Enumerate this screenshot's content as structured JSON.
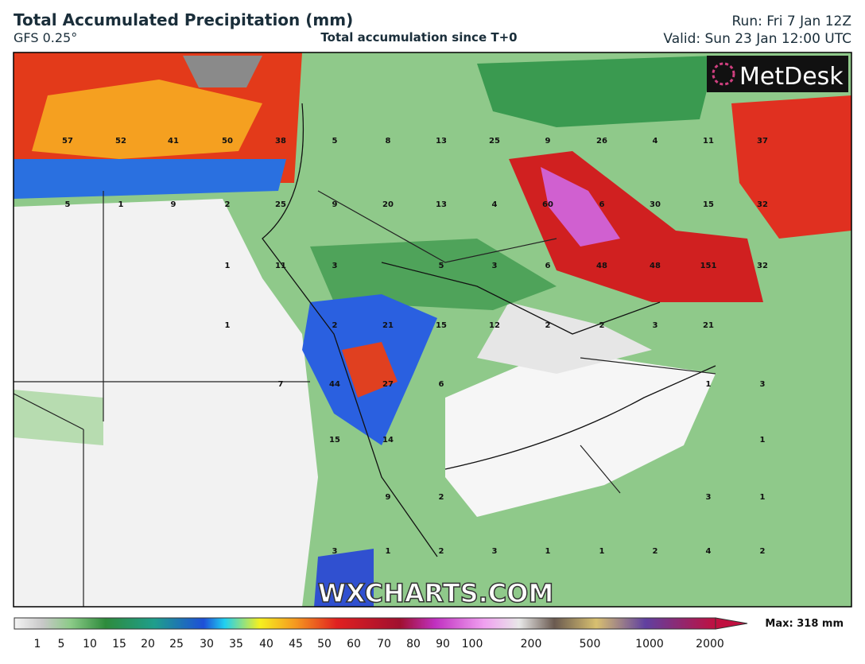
{
  "header": {
    "title": "Total Accumulated Precipitation (mm)",
    "model": "GFS 0.25°",
    "subtitle": "Total accumulation since T+0",
    "run": "Run: Fri 7 Jan 12Z",
    "valid": "Valid: Sun 23 Jan 12:00 UTC"
  },
  "map": {
    "logo": "MetDesk",
    "watermark": "WXCHARTS.COM",
    "labels": [
      [
        57,
        52,
        41,
        50,
        38,
        5,
        8,
        13,
        25,
        9,
        26,
        4,
        11,
        37
      ],
      [
        5,
        1,
        9,
        2,
        25,
        9,
        20,
        13,
        4,
        60,
        6,
        30,
        15,
        32
      ],
      [
        1,
        11,
        3,
        5,
        3,
        6,
        48,
        48,
        151,
        32
      ],
      [
        1,
        2,
        21,
        15,
        12,
        2,
        2,
        3,
        21
      ],
      [
        7,
        44,
        27,
        6,
        1,
        3
      ],
      [
        15,
        14,
        1
      ],
      [
        9,
        2,
        3,
        1
      ],
      [
        3,
        1,
        2,
        3,
        1,
        1,
        2,
        4,
        2
      ]
    ]
  },
  "colorbar": {
    "ticks": [
      1,
      5,
      10,
      15,
      20,
      25,
      30,
      35,
      40,
      45,
      50,
      60,
      70,
      80,
      90,
      100,
      200,
      500,
      1000,
      2000
    ],
    "max": "Max: 318 mm"
  }
}
